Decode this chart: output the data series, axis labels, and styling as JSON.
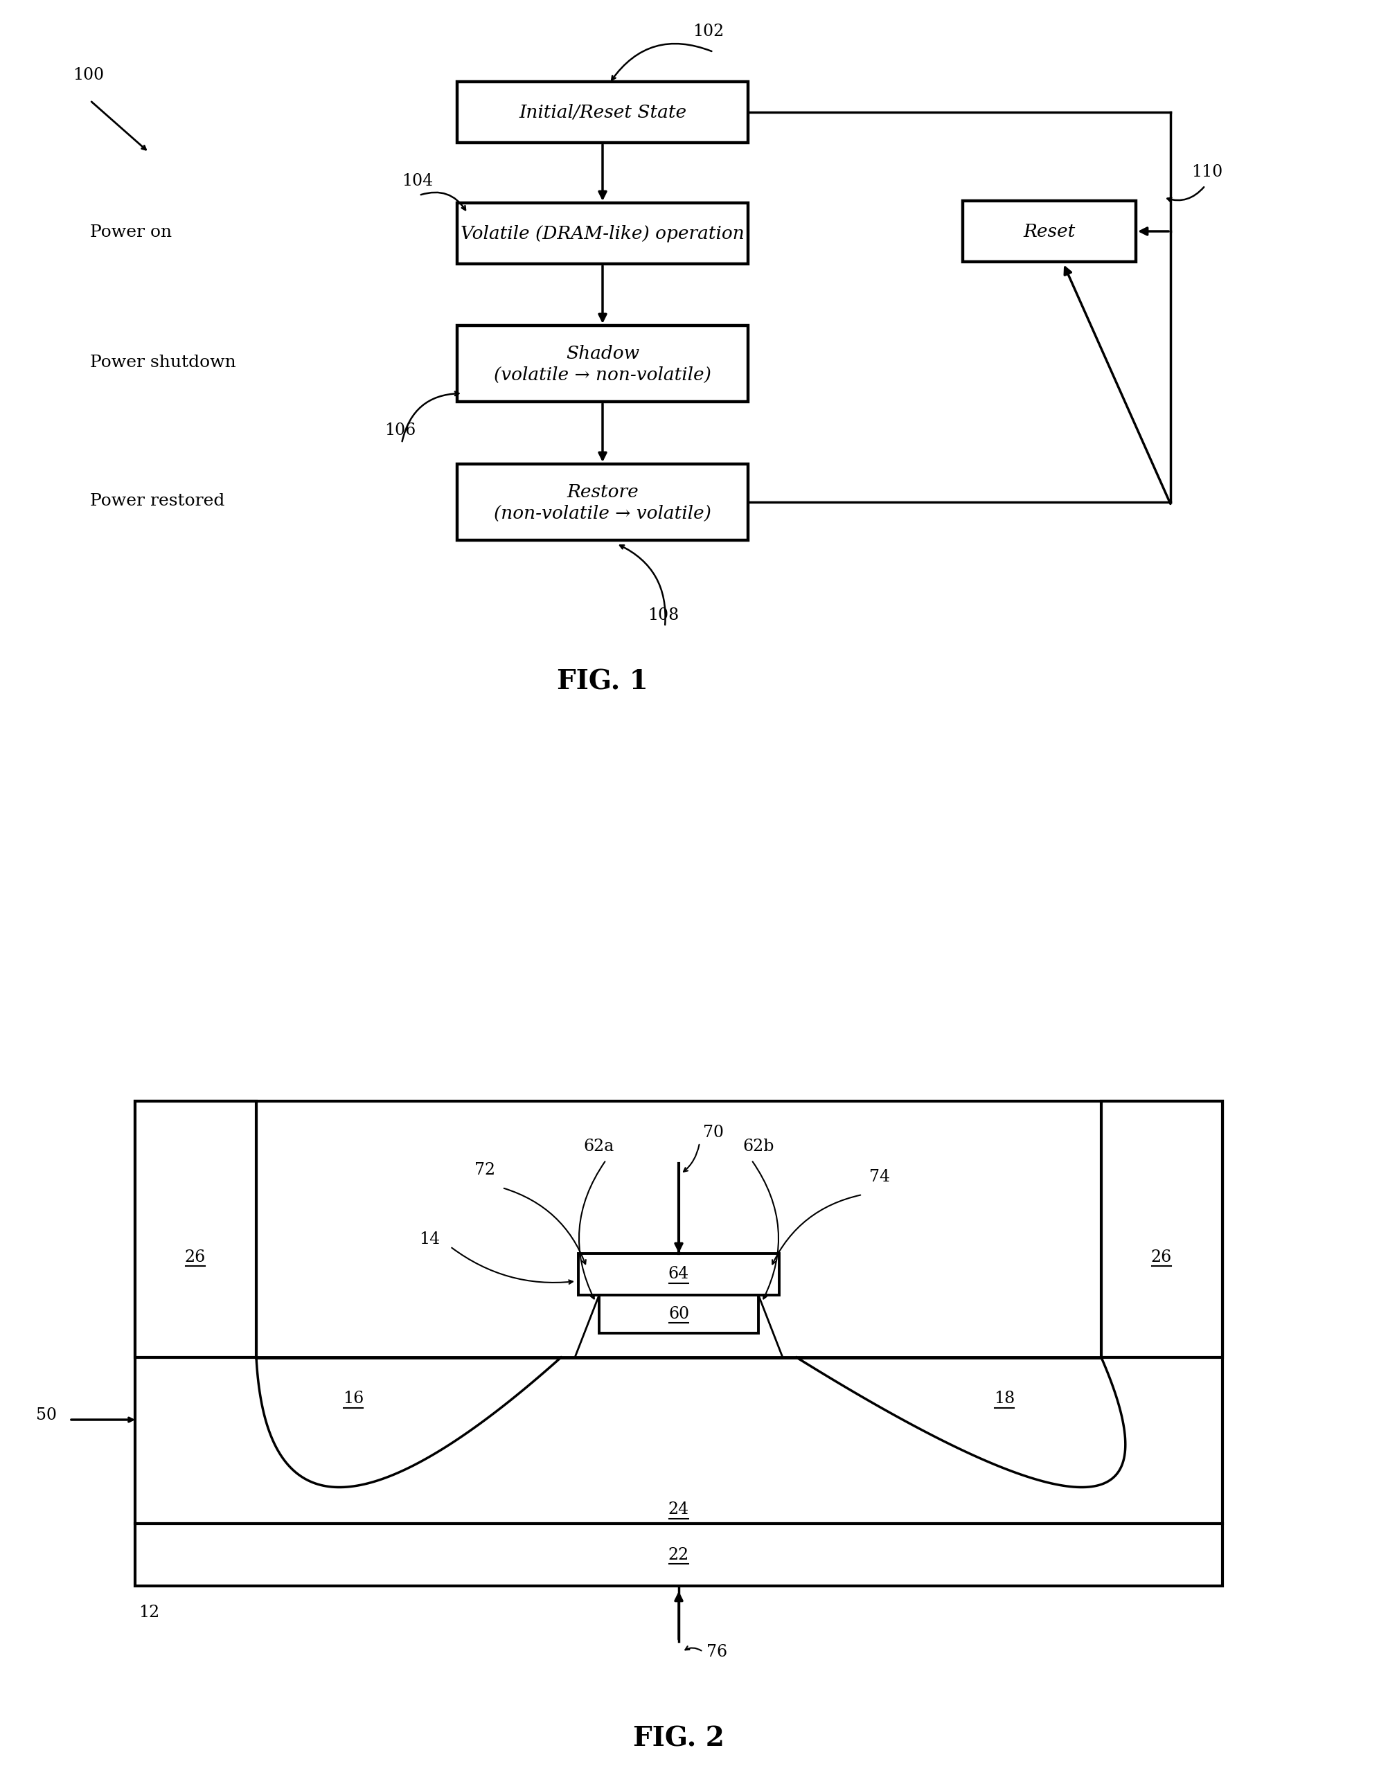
{
  "background_color": "#ffffff",
  "fig1": {
    "title": "FIG. 1",
    "label_100": "100",
    "label_102": "102",
    "label_104": "104",
    "label_106": "106",
    "label_108": "108",
    "label_110": "110",
    "box_initial": "Initial/Reset State",
    "box_volatile": "Volatile (DRAM-like) operation",
    "box_shadow_line1": "Shadow",
    "box_shadow_line2": "(volatile → non-volatile)",
    "box_restore_line1": "Restore",
    "box_restore_line2": "(non-volatile → volatile)",
    "box_reset": "Reset",
    "label_power_on": "Power on",
    "label_power_shutdown": "Power shutdown",
    "label_power_restored": "Power restored"
  },
  "fig2": {
    "title": "FIG. 2",
    "label_50": "50",
    "label_12": "12",
    "label_14": "14",
    "label_16": "16",
    "label_18": "18",
    "label_22": "22",
    "label_24": "24",
    "label_26_left": "26",
    "label_26_right": "26",
    "label_60": "60",
    "label_62a": "62a",
    "label_62b": "62b",
    "label_64": "64",
    "label_70": "70",
    "label_72": "72",
    "label_74": "74",
    "label_76": "76"
  }
}
